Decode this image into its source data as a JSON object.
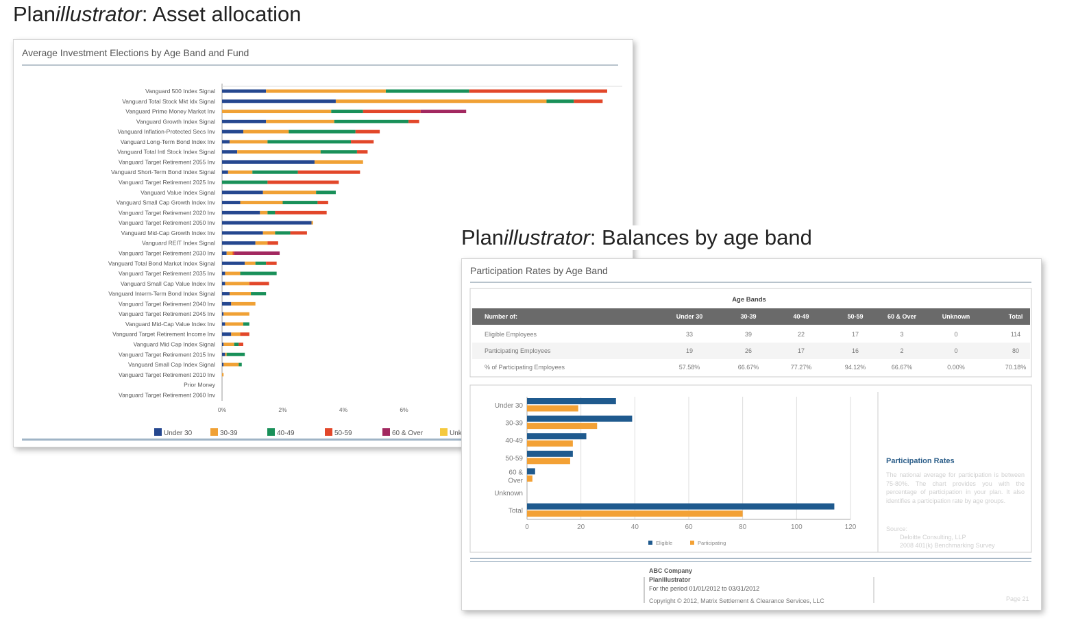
{
  "heading1": {
    "prefix": "Plan",
    "italic": "illustrator",
    "suffix": ": Asset allocation"
  },
  "heading2": {
    "prefix": "Plan",
    "italic": "illustrator",
    "suffix": ": Balances by age band"
  },
  "colors": {
    "under30": "#25478f",
    "age30_39": "#f0a135",
    "age40_49": "#199059",
    "age50_59": "#e2472a",
    "age60_over": "#a22860",
    "unknown": "#f5c93e",
    "eligible": "#1f5a8e",
    "participating": "#f3a135"
  },
  "chart_data": [
    {
      "type": "bar",
      "orientation": "horizontal",
      "stacked": true,
      "title": "Average Investment Elections by Age Band and Fund",
      "categories": [
        "Vanguard 500 Index Signal",
        "Vanguard Total Stock Mkt Idx Signal",
        "Vanguard Prime Money Market Inv",
        "Vanguard Growth Index Signal",
        "Vanguard Inflation-Protected Secs Inv",
        "Vanguard Long-Term Bond Index Inv",
        "Vanguard Total Intl Stock Index Signal",
        "Vanguard Target Retirement 2055 Inv",
        "Vanguard Short-Term Bond Index Signal",
        "Vanguard Target Retirement 2025 Inv",
        "Vanguard Value Index Signal",
        "Vanguard Small Cap Growth Index Inv",
        "Vanguard Target Retirement 2020 Inv",
        "Vanguard Target Retirement 2050 Inv",
        "Vanguard Mid-Cap Growth Index Inv",
        "Vanguard REIT Index Signal",
        "Vanguard Target Retirement 2030 Inv",
        "Vanguard Total Bond Market Index Signal",
        "Vanguard Target Retirement 2035 Inv",
        "Vanguard Small Cap Value Index Inv",
        "Vanguard Interm-Term Bond Index Signal",
        "Vanguard Target Retirement 2040 Inv",
        "Vanguard Target Retirement 2045 Inv",
        "Vanguard Mid-Cap Value Index Inv",
        "Vanguard Target Retirement Income Inv",
        "Vanguard Mid Cap Index Signal",
        "Vanguard Target Retirement 2015 Inv",
        "Vanguard Small Cap Index Signal",
        "Vanguard Target Retirement 2010 Inv",
        "Prior Money",
        "Vanguard Target Retirement 2060 Inv"
      ],
      "series": [
        {
          "name": "Under 30",
          "values": [
            1.45,
            3.75,
            0,
            1.45,
            0.7,
            0.25,
            0.5,
            3.05,
            0.2,
            0,
            1.35,
            0.6,
            1.25,
            2.95,
            1.35,
            1.1,
            0.15,
            0.75,
            0.1,
            0.1,
            0.25,
            0.3,
            0.05,
            0.1,
            0.3,
            0.05,
            0.1,
            0.05,
            0,
            0,
            0
          ]
        },
        {
          "name": "30-39",
          "values": [
            3.95,
            6.95,
            3.6,
            2.25,
            1.5,
            1.25,
            2.75,
            1.6,
            0.8,
            0,
            1.75,
            1.4,
            0.25,
            0.05,
            0.4,
            0.4,
            0.2,
            0.35,
            0.5,
            0.8,
            0.7,
            0.8,
            0.85,
            0.6,
            0.3,
            0.35,
            0.05,
            0.5,
            0.05,
            0,
            0
          ]
        },
        {
          "name": "40-49",
          "values": [
            2.75,
            0.9,
            1.05,
            2.45,
            2.2,
            2.75,
            1.2,
            0,
            1.5,
            1.5,
            0.65,
            1.15,
            0.25,
            0,
            0.5,
            0,
            0,
            0.35,
            1.2,
            0,
            0.5,
            0,
            0,
            0.2,
            0,
            0.15,
            0.6,
            0.1,
            0,
            0,
            0
          ]
        },
        {
          "name": "50-59",
          "values": [
            4.55,
            0.95,
            1.9,
            0.35,
            0.8,
            0.75,
            0.35,
            0,
            2.05,
            2.35,
            0,
            0.35,
            1.7,
            0,
            0.55,
            0.35,
            0.05,
            0.35,
            0,
            0.65,
            0,
            0,
            0,
            0,
            0.3,
            0.15,
            0,
            0,
            0,
            0,
            0
          ]
        },
        {
          "name": "60 & Over",
          "values": [
            0,
            0,
            1.5,
            0,
            0,
            0,
            0,
            0,
            0,
            0,
            0,
            0,
            0,
            0,
            0,
            0,
            1.5,
            0,
            0,
            0,
            0,
            0,
            0,
            0,
            0,
            0,
            0,
            0,
            0,
            0,
            0
          ]
        }
      ],
      "legend": [
        "Under 30",
        "30-39",
        "40-49",
        "50-59",
        "60 & Over",
        "Unk"
      ],
      "xticks": [
        "0%",
        "2%",
        "4%",
        "6%"
      ],
      "xlim": [
        0,
        13
      ],
      "legend_position": "bottom",
      "grid": false
    },
    {
      "type": "bar",
      "orientation": "horizontal",
      "title": "Participation Rates by Age Band",
      "categories": [
        "Under 30",
        "30-39",
        "40-49",
        "50-59",
        "60 & Over",
        "Unknown",
        "Total"
      ],
      "series": [
        {
          "name": "Eligible",
          "values": [
            33,
            39,
            22,
            17,
            3,
            0,
            114
          ]
        },
        {
          "name": "Participating",
          "values": [
            19,
            26,
            17,
            16,
            2,
            0,
            80
          ]
        }
      ],
      "xticks": [
        0,
        20,
        40,
        60,
        80,
        100,
        120
      ],
      "xlim": [
        0,
        120
      ],
      "grid": true,
      "legend_position": "bottom"
    }
  ],
  "table": {
    "title": "Age Bands",
    "headers": [
      "Number of:",
      "Under 30",
      "30-39",
      "40-49",
      "50-59",
      "60 & Over",
      "Unknown",
      "Total"
    ],
    "rows": [
      [
        "Eligible Employees",
        "33",
        "39",
        "22",
        "17",
        "3",
        "0",
        "114"
      ],
      [
        "Participating Employees",
        "19",
        "26",
        "17",
        "16",
        "2",
        "0",
        "80"
      ],
      [
        "% of Participating Employees",
        "57.58%",
        "66.67%",
        "77.27%",
        "94.12%",
        "66.67%",
        "0.00%",
        "70.18%"
      ]
    ]
  },
  "sidebar": {
    "title": "Participation Rates",
    "body": "The national average for participation is between 75-80%. The chart provides you with the percentage of participation in your plan. It also identifies a participation rate by age groups.",
    "source_label": "Source:",
    "source_line1": "Deloitte Consulting, LLP",
    "source_line2": "2008 401(k) Benchmarking Survey"
  },
  "footer": {
    "company": "ABC Company",
    "product": "PlanIllustrator",
    "period": "For the period 01/01/2012 to 03/31/2012",
    "copyright": "Copyright © 2012, Matrix Settlement & Clearance Services, LLC",
    "page": "Page 21"
  }
}
